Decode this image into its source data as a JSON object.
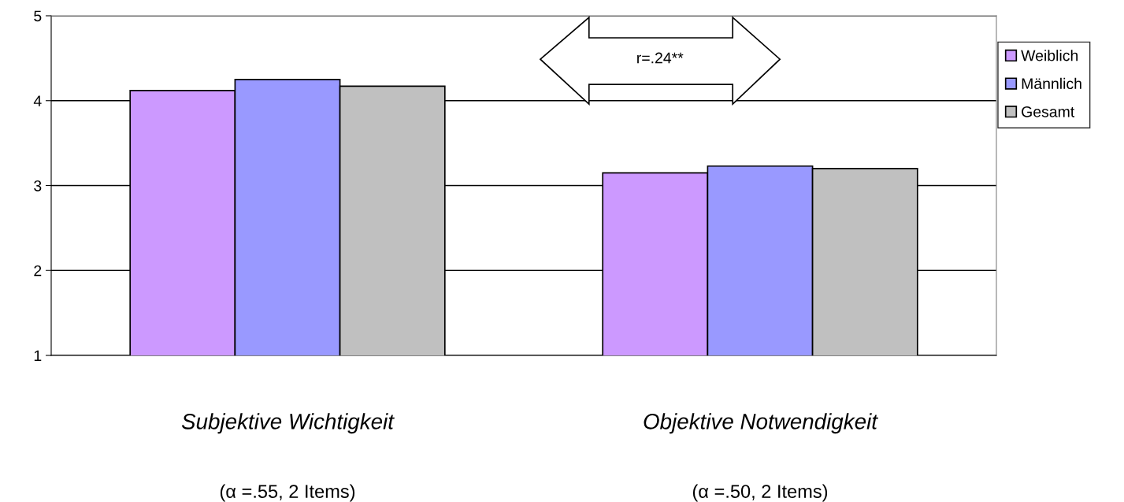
{
  "chart_data": {
    "type": "bar",
    "categories": [
      "Subjektive Wichtigkeit\n(α =.55, 2 Items)",
      "Objektive Notwendigkeit\n(α =.50, 2 Items)"
    ],
    "series": [
      {
        "name": "Weiblich",
        "color": "#cc99ff",
        "values": [
          4.12,
          3.15
        ]
      },
      {
        "name": "Männlich",
        "color": "#9999ff",
        "values": [
          4.25,
          3.23
        ]
      },
      {
        "name": "Gesamt",
        "color": "#c0c0c0",
        "values": [
          4.17,
          3.2
        ]
      }
    ],
    "ylim": [
      1,
      5
    ],
    "yticks": [
      1,
      2,
      3,
      4,
      5
    ],
    "grid": "y",
    "legend": "top right",
    "annotations": [
      "r=.24**"
    ]
  }
}
